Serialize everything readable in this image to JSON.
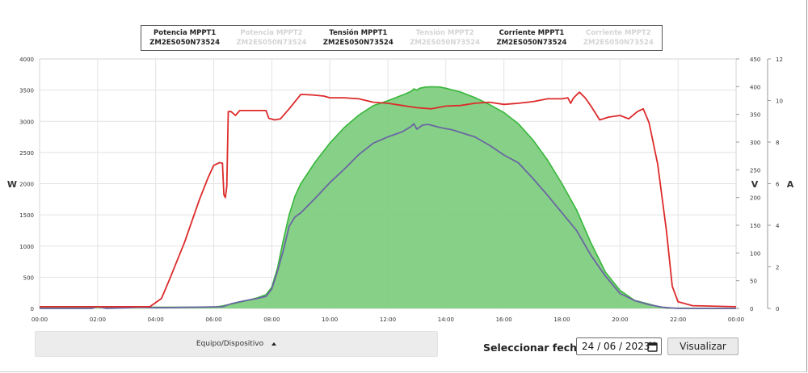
{
  "legend": [
    {
      "line1": "Potencia MPPT1",
      "line2": "ZM2ES050N73524",
      "visible": true
    },
    {
      "line1": "Potencia MPPT2",
      "line2": "ZM2ES050N73524",
      "visible": false
    },
    {
      "line1": "Tensión MPPT1",
      "line2": "ZM2ES050N73524",
      "visible": true
    },
    {
      "line1": "Tensión MPPT2",
      "line2": "ZM2ES050N73524",
      "visible": false
    },
    {
      "line1": "Corriente MPPT1",
      "line2": "ZM2ES050N73524",
      "visible": true
    },
    {
      "line1": "Corriente MPPT2",
      "line2": "ZM2ES050N73524",
      "visible": false
    }
  ],
  "controls": {
    "device_selector_label": "Equipo/Dispositivo",
    "date_label": "Seleccionar fecha",
    "date_value": "24 / 06 / 2023",
    "visualize_button": "Visualizar"
  },
  "colors": {
    "potencia_fill": "#7fcf81",
    "potencia_line": "#38b63b",
    "tension": "#dd2a2a",
    "corriente": "#6a66a2",
    "grid": "#e3e3e3"
  },
  "chart_data": {
    "type": "area",
    "x_ticks": [
      "00:00",
      "02:00",
      "04:00",
      "06:00",
      "08:00",
      "10:00",
      "12:00",
      "14:00",
      "16:00",
      "18:00",
      "20:00",
      "22:00",
      "00:00"
    ],
    "x_range_hours": [
      0,
      24
    ],
    "axes": {
      "W": {
        "label": "W",
        "range": [
          0,
          4000
        ],
        "ticks": [
          0,
          500,
          1000,
          1500,
          2000,
          2500,
          3000,
          3500,
          4000
        ]
      },
      "V": {
        "label": "V",
        "range": [
          0,
          450
        ],
        "ticks": [
          0,
          50,
          100,
          150,
          200,
          250,
          300,
          350,
          400,
          450
        ]
      },
      "A": {
        "label": "A",
        "range": [
          0,
          12
        ],
        "ticks": [
          0,
          2,
          4,
          6,
          8,
          10,
          12
        ]
      }
    },
    "grid": true,
    "series": [
      {
        "name": "Potencia MPPT1",
        "axis": "W",
        "kind": "area",
        "points": [
          [
            0,
            20
          ],
          [
            6,
            20
          ],
          [
            6.3,
            40
          ],
          [
            6.6,
            70
          ],
          [
            7,
            110
          ],
          [
            7.5,
            170
          ],
          [
            7.8,
            220
          ],
          [
            8,
            340
          ],
          [
            8.2,
            650
          ],
          [
            8.4,
            1100
          ],
          [
            8.6,
            1500
          ],
          [
            8.8,
            1800
          ],
          [
            9,
            2000
          ],
          [
            9.5,
            2350
          ],
          [
            10,
            2650
          ],
          [
            10.5,
            2900
          ],
          [
            11,
            3100
          ],
          [
            11.5,
            3250
          ],
          [
            12,
            3330
          ],
          [
            12.5,
            3420
          ],
          [
            12.8,
            3480
          ],
          [
            12.9,
            3520
          ],
          [
            13,
            3500
          ],
          [
            13.1,
            3530
          ],
          [
            13.3,
            3550
          ],
          [
            13.5,
            3555
          ],
          [
            13.8,
            3550
          ],
          [
            14,
            3530
          ],
          [
            14.5,
            3470
          ],
          [
            15,
            3380
          ],
          [
            15.5,
            3270
          ],
          [
            16,
            3140
          ],
          [
            16.5,
            2960
          ],
          [
            17,
            2700
          ],
          [
            17.5,
            2380
          ],
          [
            18,
            2000
          ],
          [
            18.5,
            1580
          ],
          [
            19,
            1050
          ],
          [
            19.5,
            580
          ],
          [
            20,
            290
          ],
          [
            20.5,
            130
          ],
          [
            21,
            70
          ],
          [
            21.3,
            30
          ],
          [
            21.6,
            5
          ],
          [
            24,
            0
          ]
        ]
      },
      {
        "name": "Corriente MPPT1",
        "axis": "A",
        "kind": "line",
        "points": [
          [
            0,
            0
          ],
          [
            1.8,
            0
          ],
          [
            2,
            0.09
          ],
          [
            2.3,
            0
          ],
          [
            3,
            0.03
          ],
          [
            3.5,
            0.06
          ],
          [
            4,
            0.03
          ],
          [
            6.3,
            0.08
          ],
          [
            6.6,
            0.22
          ],
          [
            7,
            0.35
          ],
          [
            7.5,
            0.48
          ],
          [
            7.8,
            0.58
          ],
          [
            8,
            0.93
          ],
          [
            8.2,
            1.8
          ],
          [
            8.4,
            2.8
          ],
          [
            8.6,
            3.95
          ],
          [
            8.8,
            4.4
          ],
          [
            9,
            4.6
          ],
          [
            9.5,
            5.3
          ],
          [
            10,
            6.05
          ],
          [
            10.5,
            6.7
          ],
          [
            11,
            7.4
          ],
          [
            11.5,
            7.95
          ],
          [
            12,
            8.25
          ],
          [
            12.5,
            8.5
          ],
          [
            12.8,
            8.75
          ],
          [
            12.9,
            8.88
          ],
          [
            13,
            8.62
          ],
          [
            13.2,
            8.82
          ],
          [
            13.4,
            8.85
          ],
          [
            13.8,
            8.7
          ],
          [
            14.2,
            8.6
          ],
          [
            15,
            8.25
          ],
          [
            15.5,
            7.85
          ],
          [
            16,
            7.38
          ],
          [
            16.5,
            7.0
          ],
          [
            17,
            6.25
          ],
          [
            17.5,
            5.45
          ],
          [
            18,
            4.6
          ],
          [
            18.5,
            3.75
          ],
          [
            19,
            2.55
          ],
          [
            19.5,
            1.55
          ],
          [
            20,
            0.72
          ],
          [
            20.5,
            0.38
          ],
          [
            21,
            0.18
          ],
          [
            21.5,
            0.05
          ],
          [
            22,
            0
          ],
          [
            24,
            0
          ]
        ]
      },
      {
        "name": "Tensión MPPT1",
        "axis": "V",
        "kind": "line",
        "points": [
          [
            0,
            3
          ],
          [
            3.8,
            3
          ],
          [
            4.2,
            18
          ],
          [
            4.5,
            55
          ],
          [
            5,
            120
          ],
          [
            5.5,
            195
          ],
          [
            5.8,
            235
          ],
          [
            6,
            258
          ],
          [
            6.2,
            263
          ],
          [
            6.3,
            262
          ],
          [
            6.35,
            205
          ],
          [
            6.4,
            200
          ],
          [
            6.45,
            220
          ],
          [
            6.5,
            355
          ],
          [
            6.6,
            355
          ],
          [
            6.75,
            348
          ],
          [
            6.9,
            357
          ],
          [
            7.2,
            357
          ],
          [
            7.5,
            357
          ],
          [
            7.8,
            357
          ],
          [
            7.9,
            343
          ],
          [
            8.1,
            340
          ],
          [
            8.3,
            342
          ],
          [
            8.6,
            360
          ],
          [
            9,
            386
          ],
          [
            9.4,
            385
          ],
          [
            9.8,
            383
          ],
          [
            10,
            380
          ],
          [
            10.5,
            380
          ],
          [
            11,
            378
          ],
          [
            11.5,
            372
          ],
          [
            12,
            370
          ],
          [
            12.5,
            366
          ],
          [
            13,
            362
          ],
          [
            13.5,
            360
          ],
          [
            14,
            365
          ],
          [
            14.5,
            366
          ],
          [
            15,
            370
          ],
          [
            15.5,
            372
          ],
          [
            16,
            368
          ],
          [
            16.5,
            370
          ],
          [
            17,
            373
          ],
          [
            17.5,
            378
          ],
          [
            18,
            378
          ],
          [
            18.2,
            380
          ],
          [
            18.3,
            370
          ],
          [
            18.4,
            380
          ],
          [
            18.6,
            390
          ],
          [
            18.8,
            380
          ],
          [
            19,
            365
          ],
          [
            19.3,
            340
          ],
          [
            19.6,
            345
          ],
          [
            20,
            348
          ],
          [
            20.3,
            342
          ],
          [
            20.6,
            355
          ],
          [
            20.8,
            360
          ],
          [
            21,
            335
          ],
          [
            21.3,
            260
          ],
          [
            21.6,
            140
          ],
          [
            21.8,
            40
          ],
          [
            22,
            12
          ],
          [
            22.5,
            5
          ],
          [
            24,
            3
          ]
        ]
      }
    ]
  }
}
